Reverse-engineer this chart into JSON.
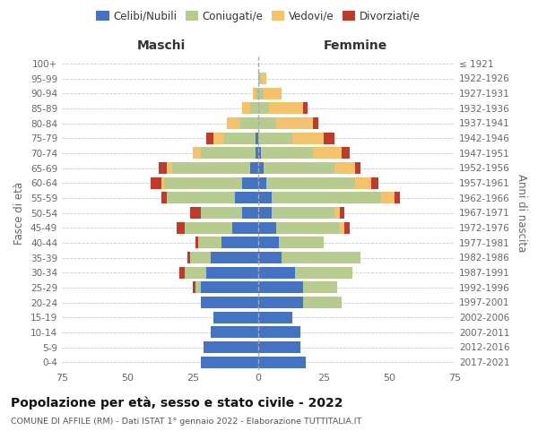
{
  "age_groups": [
    "0-4",
    "5-9",
    "10-14",
    "15-19",
    "20-24",
    "25-29",
    "30-34",
    "35-39",
    "40-44",
    "45-49",
    "50-54",
    "55-59",
    "60-64",
    "65-69",
    "70-74",
    "75-79",
    "80-84",
    "85-89",
    "90-94",
    "95-99",
    "100+"
  ],
  "birth_years": [
    "2017-2021",
    "2012-2016",
    "2007-2011",
    "2002-2006",
    "1997-2001",
    "1992-1996",
    "1987-1991",
    "1982-1986",
    "1977-1981",
    "1972-1976",
    "1967-1971",
    "1962-1966",
    "1957-1961",
    "1952-1956",
    "1947-1951",
    "1942-1946",
    "1937-1941",
    "1932-1936",
    "1927-1931",
    "1922-1926",
    "≤ 1921"
  ],
  "maschi": {
    "celibi": [
      22,
      21,
      18,
      17,
      22,
      22,
      20,
      18,
      14,
      10,
      6,
      9,
      6,
      3,
      1,
      1,
      0,
      0,
      0,
      0,
      0
    ],
    "coniugati": [
      0,
      0,
      0,
      0,
      0,
      2,
      8,
      8,
      9,
      18,
      16,
      26,
      30,
      30,
      21,
      12,
      7,
      3,
      1,
      0,
      0
    ],
    "vedovi": [
      0,
      0,
      0,
      0,
      0,
      0,
      0,
      0,
      0,
      0,
      0,
      0,
      1,
      2,
      3,
      4,
      5,
      3,
      1,
      0,
      0
    ],
    "divorziati": [
      0,
      0,
      0,
      0,
      0,
      1,
      2,
      1,
      1,
      3,
      4,
      2,
      4,
      3,
      0,
      3,
      0,
      0,
      0,
      0,
      0
    ]
  },
  "femmine": {
    "nubili": [
      18,
      16,
      16,
      13,
      17,
      17,
      14,
      9,
      8,
      7,
      5,
      5,
      3,
      2,
      1,
      0,
      0,
      0,
      0,
      0,
      0
    ],
    "coniugate": [
      0,
      0,
      0,
      0,
      15,
      13,
      22,
      30,
      17,
      24,
      24,
      42,
      34,
      27,
      20,
      13,
      7,
      4,
      2,
      1,
      0
    ],
    "vedove": [
      0,
      0,
      0,
      0,
      0,
      0,
      0,
      0,
      0,
      2,
      2,
      5,
      6,
      8,
      11,
      12,
      14,
      13,
      7,
      2,
      0
    ],
    "divorziate": [
      0,
      0,
      0,
      0,
      0,
      0,
      0,
      0,
      0,
      2,
      2,
      2,
      3,
      2,
      3,
      4,
      2,
      2,
      0,
      0,
      0
    ]
  },
  "colors": {
    "celibi_nubili": "#4472C4",
    "coniugati_e": "#B5CC8E",
    "vedovi_e": "#F5C26B",
    "divorziati_e": "#C0392B"
  },
  "xlim": 75,
  "title": "Popolazione per età, sesso e stato civile - 2022",
  "subtitle": "COMUNE DI AFFILE (RM) - Dati ISTAT 1° gennaio 2022 - Elaborazione TUTTITALIA.IT",
  "ylabel_left": "Fasce di età",
  "ylabel_right": "Anni di nascita",
  "xlabel_left": "Maschi",
  "xlabel_right": "Femmine",
  "background_color": "#ffffff",
  "grid_color": "#cccccc"
}
